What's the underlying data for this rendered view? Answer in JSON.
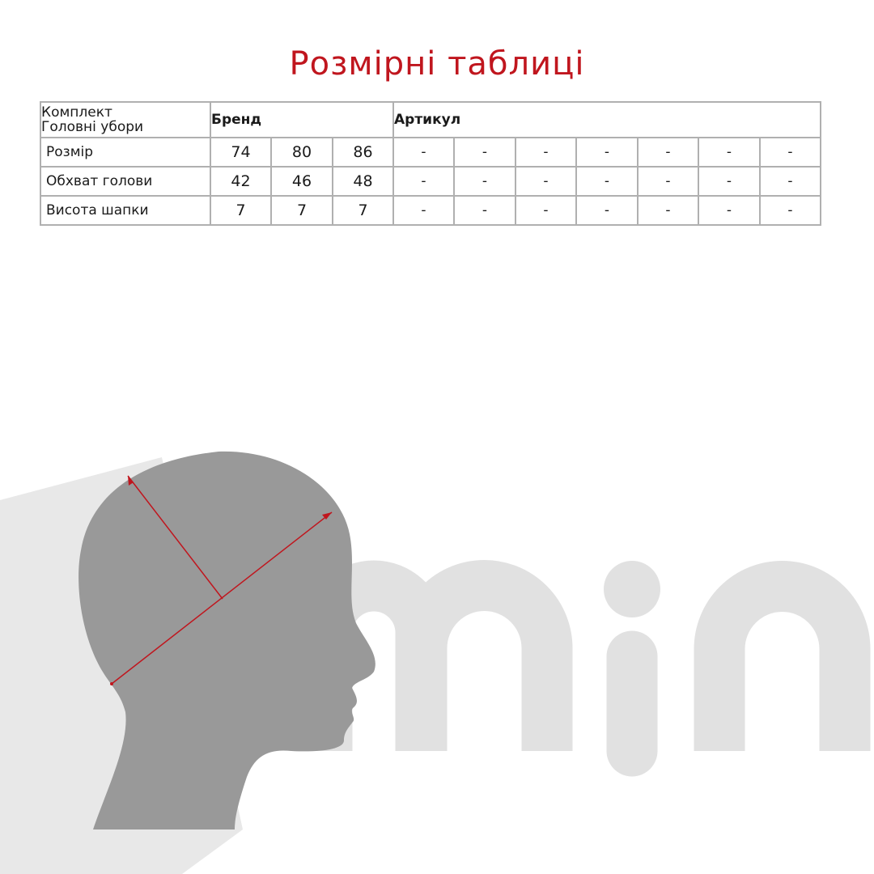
{
  "title": "Розмірні таблиці",
  "table": {
    "kit_label": "Комплект",
    "kit_value": "Головні убори",
    "brand_label": "Бренд",
    "article_label": "Артикул",
    "rows": [
      {
        "label": "Розмір",
        "values": [
          "74",
          "80",
          "86"
        ],
        "article": [
          "-",
          "-",
          "-",
          "-",
          "-",
          "-",
          "-"
        ]
      },
      {
        "label": "Обхват голови",
        "values": [
          "42",
          "46",
          "48"
        ],
        "article": [
          "-",
          "-",
          "-",
          "-",
          "-",
          "-",
          "-"
        ]
      },
      {
        "label": "Висота шапки",
        "values": [
          "7",
          "7",
          "7"
        ],
        "article": [
          "-",
          "-",
          "-",
          "-",
          "-",
          "-",
          "-"
        ]
      }
    ]
  },
  "logo": {
    "text": "min"
  },
  "colors": {
    "accent": "#c0161e",
    "head": "#999999",
    "shadow": "#e8e8e8",
    "logo": "#e1e1e1",
    "border": "#b0b0b0"
  }
}
